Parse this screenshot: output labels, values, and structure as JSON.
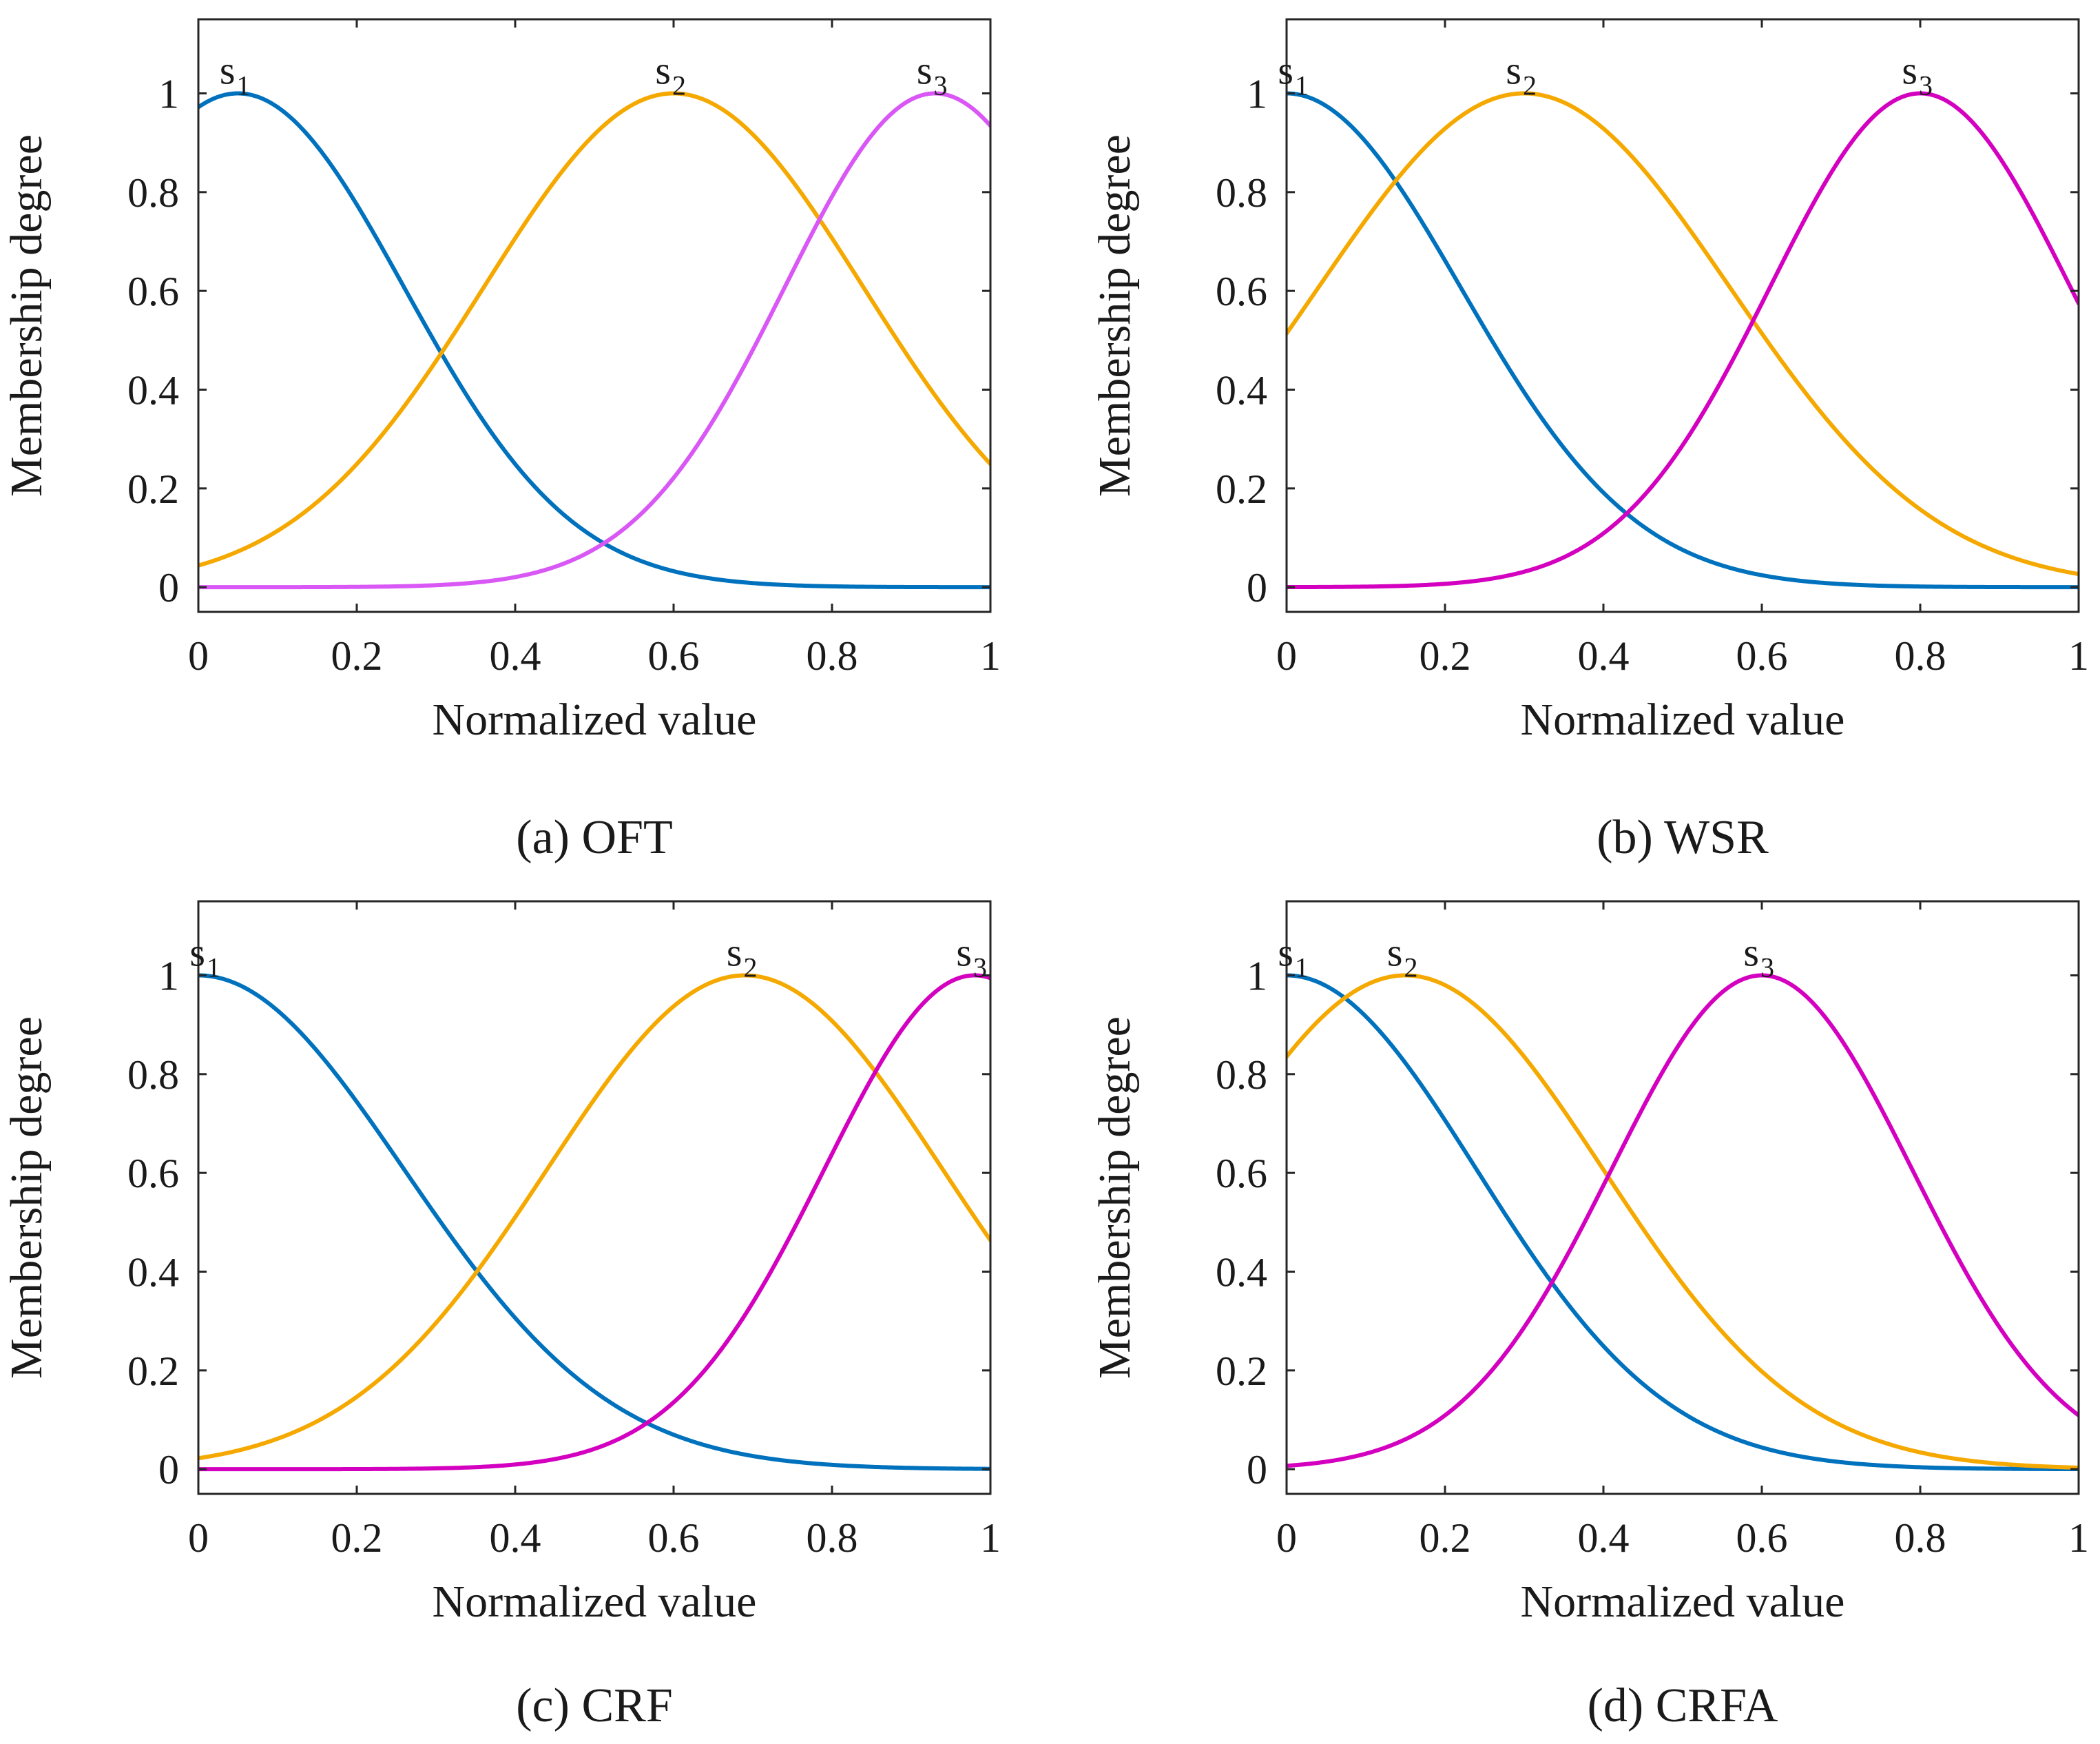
{
  "chart_data": [
    {
      "type": "line",
      "caption": "(a) OFT",
      "xlabel": "Normalized value",
      "ylabel": "Membership degree",
      "xlim": [
        0,
        1
      ],
      "ylim": [
        -0.05,
        1.15
      ],
      "xticks": [
        "0",
        "0.2",
        "0.4",
        "0.6",
        "0.8",
        "1"
      ],
      "yticks": [
        "0",
        "0.2",
        "0.4",
        "0.6",
        "0.8",
        "1"
      ],
      "series": [
        {
          "name": "s1",
          "label": "s",
          "sub": "1",
          "color": "#0072BD",
          "center": 0.05,
          "sigma": 0.21
        },
        {
          "name": "s2",
          "label": "s",
          "sub": "2",
          "color": "#F5A900",
          "center": 0.6,
          "sigma": 0.24
        },
        {
          "name": "s3",
          "label": "s",
          "sub": "3",
          "color": "#D957F5",
          "center": 0.93,
          "sigma": 0.19
        }
      ]
    },
    {
      "type": "line",
      "caption": "(b) WSR",
      "xlabel": "Normalized value",
      "ylabel": "Membership degree",
      "xlim": [
        0,
        1
      ],
      "ylim": [
        -0.05,
        1.15
      ],
      "xticks": [
        "0",
        "0.2",
        "0.4",
        "0.6",
        "0.8",
        "1"
      ],
      "yticks": [
        "0",
        "0.2",
        "0.4",
        "0.6",
        "0.8",
        "1"
      ],
      "series": [
        {
          "name": "s1",
          "label": "s",
          "sub": "1",
          "color": "#0072BD",
          "center": 0.0,
          "sigma": 0.22
        },
        {
          "name": "s2",
          "label": "s",
          "sub": "2",
          "color": "#F5A900",
          "center": 0.3,
          "sigma": 0.26
        },
        {
          "name": "s3",
          "label": "s",
          "sub": "3",
          "color": "#D400C0",
          "center": 0.8,
          "sigma": 0.19
        }
      ]
    },
    {
      "type": "line",
      "caption": "(c) CRF",
      "xlabel": "Normalized value",
      "ylabel": "Membership degree",
      "xlim": [
        0,
        1
      ],
      "ylim": [
        -0.05,
        1.15
      ],
      "xticks": [
        "0",
        "0.2",
        "0.4",
        "0.6",
        "0.8",
        "1"
      ],
      "yticks": [
        "0",
        "0.2",
        "0.4",
        "0.6",
        "0.8",
        "1"
      ],
      "series": [
        {
          "name": "s1",
          "label": "s",
          "sub": "1",
          "color": "#0072BD",
          "center": 0.0,
          "sigma": 0.26
        },
        {
          "name": "s2",
          "label": "s",
          "sub": "2",
          "color": "#F5A900",
          "center": 0.69,
          "sigma": 0.25
        },
        {
          "name": "s3",
          "label": "s",
          "sub": "3",
          "color": "#D400C0",
          "center": 0.98,
          "sigma": 0.19
        }
      ]
    },
    {
      "type": "line",
      "caption": "(d) CRFA",
      "xlabel": "Normalized value",
      "ylabel": "Membership degree",
      "xlim": [
        0,
        1
      ],
      "ylim": [
        -0.05,
        1.15
      ],
      "xticks": [
        "0",
        "0.2",
        "0.4",
        "0.6",
        "0.8",
        "1"
      ],
      "yticks": [
        "0",
        "0.2",
        "0.4",
        "0.6",
        "0.8",
        "1"
      ],
      "series": [
        {
          "name": "s1",
          "label": "s",
          "sub": "1",
          "color": "#0072BD",
          "center": 0.0,
          "sigma": 0.24
        },
        {
          "name": "s2",
          "label": "s",
          "sub": "2",
          "color": "#F5A900",
          "center": 0.15,
          "sigma": 0.25
        },
        {
          "name": "s3",
          "label": "s",
          "sub": "3",
          "color": "#D400C0",
          "center": 0.6,
          "sigma": 0.19
        }
      ]
    }
  ]
}
